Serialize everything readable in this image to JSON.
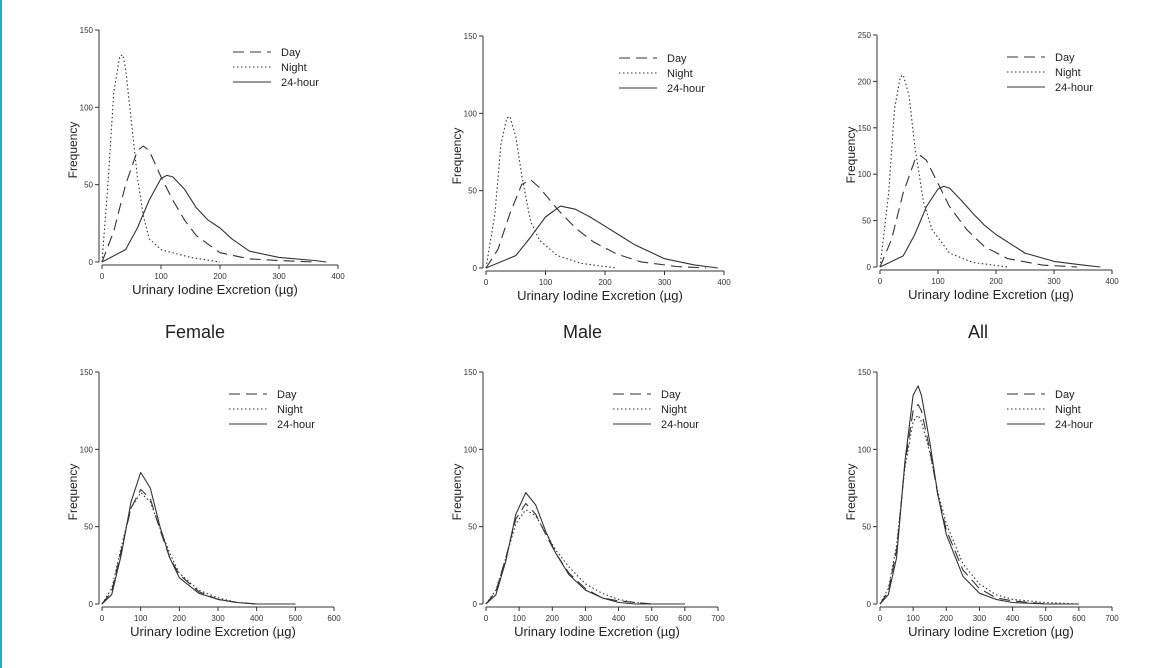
{
  "group_labels": [
    "Female",
    "Male",
    "All"
  ],
  "colors": {
    "accent_border": "#2aa7c8",
    "line": "#333333",
    "axis": "#333333"
  },
  "chart_data": [
    {
      "type": "line",
      "panel": "female-top",
      "xlabel": "Urinary Iodine Excretion (µg)",
      "ylabel": "Frequency",
      "xlim": [
        0,
        400
      ],
      "ylim": [
        0,
        150
      ],
      "xticks": [
        0,
        100,
        200,
        300,
        400
      ],
      "yticks": [
        0,
        50,
        100,
        150
      ],
      "legend": "top-right",
      "series": [
        {
          "name": "Day",
          "style": "dash",
          "x": [
            0,
            20,
            40,
            60,
            70,
            80,
            100,
            120,
            140,
            160,
            200,
            250,
            300,
            360
          ],
          "values": [
            0,
            20,
            50,
            72,
            75,
            72,
            55,
            40,
            27,
            17,
            6,
            2,
            1,
            0
          ]
        },
        {
          "name": "Night",
          "style": "dot",
          "x": [
            0,
            10,
            20,
            30,
            35,
            40,
            50,
            60,
            70,
            80,
            100,
            150,
            200
          ],
          "values": [
            0,
            50,
            110,
            133,
            134,
            125,
            90,
            55,
            30,
            15,
            8,
            3,
            0
          ]
        },
        {
          "name": "24-hour",
          "style": "solid",
          "x": [
            0,
            40,
            60,
            80,
            100,
            110,
            120,
            140,
            160,
            180,
            200,
            220,
            250,
            300,
            360,
            380
          ],
          "values": [
            0,
            8,
            22,
            40,
            54,
            56,
            55,
            47,
            35,
            27,
            22,
            15,
            7,
            3,
            1,
            0
          ]
        }
      ]
    },
    {
      "type": "line",
      "panel": "male-top",
      "xlabel": "Urinary Iodine Excretion (µg)",
      "ylabel": "Frequency",
      "xlim": [
        0,
        400
      ],
      "ylim": [
        0,
        150
      ],
      "xticks": [
        0,
        100,
        200,
        300,
        400
      ],
      "yticks": [
        0,
        50,
        100,
        150
      ],
      "legend": "top-right",
      "series": [
        {
          "name": "Day",
          "style": "dash",
          "x": [
            0,
            20,
            40,
            60,
            75,
            90,
            120,
            150,
            180,
            220,
            260,
            320,
            370
          ],
          "values": [
            0,
            12,
            35,
            54,
            57,
            52,
            38,
            26,
            17,
            9,
            4,
            1,
            0
          ]
        },
        {
          "name": "Night",
          "style": "dot",
          "x": [
            0,
            15,
            25,
            35,
            40,
            50,
            60,
            75,
            90,
            120,
            160,
            220
          ],
          "values": [
            0,
            35,
            80,
            97,
            98,
            85,
            60,
            30,
            18,
            8,
            3,
            0
          ]
        },
        {
          "name": "24-hour",
          "style": "solid",
          "x": [
            0,
            50,
            75,
            100,
            125,
            150,
            175,
            200,
            225,
            250,
            300,
            350,
            390
          ],
          "values": [
            0,
            8,
            20,
            33,
            40,
            38,
            33,
            27,
            21,
            15,
            6,
            2,
            0
          ]
        }
      ]
    },
    {
      "type": "line",
      "panel": "all-top",
      "xlabel": "Urinary Iodine Excretion (µg)",
      "ylabel": "Frequency",
      "xlim": [
        0,
        400
      ],
      "ylim": [
        0,
        250
      ],
      "xticks": [
        0,
        100,
        200,
        300,
        400
      ],
      "yticks": [
        0,
        50,
        100,
        150,
        200,
        250
      ],
      "legend": "top-right",
      "series": [
        {
          "name": "Day",
          "style": "dash",
          "x": [
            0,
            20,
            40,
            60,
            70,
            80,
            100,
            120,
            150,
            180,
            220,
            280,
            340
          ],
          "values": [
            0,
            30,
            80,
            115,
            120,
            115,
            90,
            65,
            40,
            22,
            9,
            2,
            0
          ]
        },
        {
          "name": "Night",
          "style": "dot",
          "x": [
            0,
            15,
            25,
            35,
            40,
            50,
            60,
            75,
            90,
            120,
            160,
            220
          ],
          "values": [
            0,
            80,
            170,
            205,
            207,
            185,
            130,
            70,
            40,
            15,
            5,
            0
          ]
        },
        {
          "name": "24-hour",
          "style": "solid",
          "x": [
            0,
            40,
            60,
            80,
            100,
            110,
            120,
            140,
            160,
            180,
            200,
            250,
            300,
            350,
            380
          ],
          "values": [
            0,
            12,
            35,
            65,
            84,
            87,
            85,
            72,
            58,
            45,
            35,
            15,
            6,
            2,
            0
          ]
        }
      ]
    },
    {
      "type": "line",
      "panel": "female-bottom",
      "xlabel": "Urinary Iodine Excretion (µg)",
      "ylabel": "Frequency",
      "xlim": [
        0,
        600
      ],
      "ylim": [
        0,
        150
      ],
      "xticks": [
        0,
        100,
        200,
        300,
        400,
        500,
        600
      ],
      "yticks": [
        0,
        50,
        100,
        150
      ],
      "legend": "top-right",
      "series": [
        {
          "name": "Day",
          "style": "dash",
          "x": [
            0,
            25,
            50,
            75,
            100,
            125,
            150,
            175,
            200,
            250,
            300,
            350,
            400,
            450,
            500
          ],
          "values": [
            0,
            8,
            35,
            62,
            74,
            68,
            48,
            30,
            19,
            8,
            3,
            1,
            0,
            0,
            0
          ]
        },
        {
          "name": "Night",
          "style": "dot",
          "x": [
            0,
            25,
            50,
            75,
            100,
            125,
            150,
            175,
            200,
            250,
            300,
            350,
            400,
            450,
            500
          ],
          "values": [
            0,
            10,
            37,
            62,
            72,
            66,
            49,
            33,
            20,
            9,
            4,
            1,
            0,
            0,
            0
          ]
        },
        {
          "name": "24-hour",
          "style": "solid",
          "x": [
            0,
            25,
            50,
            75,
            100,
            125,
            150,
            175,
            200,
            250,
            300,
            350,
            400,
            450,
            500
          ],
          "values": [
            0,
            6,
            32,
            66,
            85,
            75,
            50,
            30,
            17,
            7,
            3,
            1,
            0,
            0,
            0
          ]
        }
      ]
    },
    {
      "type": "line",
      "panel": "male-bottom",
      "xlabel": "Urinary Iodine Excretion (µg)",
      "ylabel": "Frequency",
      "xlim": [
        0,
        700
      ],
      "ylim": [
        0,
        150
      ],
      "xticks": [
        0,
        100,
        200,
        300,
        400,
        500,
        600,
        700
      ],
      "yticks": [
        0,
        50,
        100,
        150
      ],
      "legend": "top-right",
      "series": [
        {
          "name": "Day",
          "style": "dash",
          "x": [
            0,
            30,
            60,
            90,
            120,
            150,
            180,
            210,
            250,
            300,
            350,
            400,
            450,
            500,
            600
          ],
          "values": [
            0,
            8,
            30,
            55,
            65,
            58,
            45,
            33,
            20,
            10,
            4,
            2,
            1,
            0,
            0
          ]
        },
        {
          "name": "Night",
          "style": "dot",
          "x": [
            0,
            30,
            60,
            90,
            120,
            150,
            180,
            210,
            250,
            300,
            350,
            400,
            450,
            500,
            600
          ],
          "values": [
            0,
            9,
            30,
            52,
            61,
            57,
            46,
            35,
            24,
            13,
            7,
            3,
            1,
            0,
            0
          ]
        },
        {
          "name": "24-hour",
          "style": "solid",
          "x": [
            0,
            30,
            60,
            90,
            120,
            150,
            180,
            210,
            250,
            300,
            350,
            400,
            450,
            500,
            600
          ],
          "values": [
            0,
            6,
            28,
            58,
            72,
            64,
            47,
            33,
            19,
            9,
            4,
            1,
            0,
            0,
            0
          ]
        }
      ]
    },
    {
      "type": "line",
      "panel": "all-bottom",
      "xlabel": "Urinary Iodine Excretion (µg)",
      "ylabel": "Frequency",
      "xlim": [
        0,
        700
      ],
      "ylim": [
        0,
        150
      ],
      "xticks": [
        0,
        100,
        200,
        300,
        400,
        500,
        600,
        700
      ],
      "yticks": [
        0,
        50,
        100,
        150
      ],
      "legend": "top-right",
      "series": [
        {
          "name": "Day",
          "style": "dash",
          "x": [
            0,
            25,
            50,
            75,
            100,
            115,
            125,
            150,
            175,
            200,
            250,
            300,
            350,
            400,
            500,
            600
          ],
          "values": [
            0,
            8,
            35,
            90,
            125,
            129,
            125,
            100,
            70,
            48,
            22,
            10,
            4,
            2,
            0,
            0
          ]
        },
        {
          "name": "Night",
          "style": "dot",
          "x": [
            0,
            25,
            50,
            75,
            100,
            115,
            125,
            150,
            175,
            200,
            250,
            300,
            350,
            400,
            500,
            600
          ],
          "values": [
            0,
            10,
            38,
            88,
            118,
            122,
            118,
            98,
            72,
            52,
            26,
            13,
            6,
            3,
            1,
            0
          ]
        },
        {
          "name": "24-hour",
          "style": "solid",
          "x": [
            0,
            25,
            50,
            75,
            100,
            115,
            125,
            150,
            175,
            200,
            250,
            300,
            350,
            400,
            500,
            600
          ],
          "values": [
            0,
            6,
            30,
            92,
            135,
            141,
            135,
            105,
            70,
            45,
            18,
            7,
            3,
            1,
            0,
            0
          ]
        }
      ]
    }
  ]
}
